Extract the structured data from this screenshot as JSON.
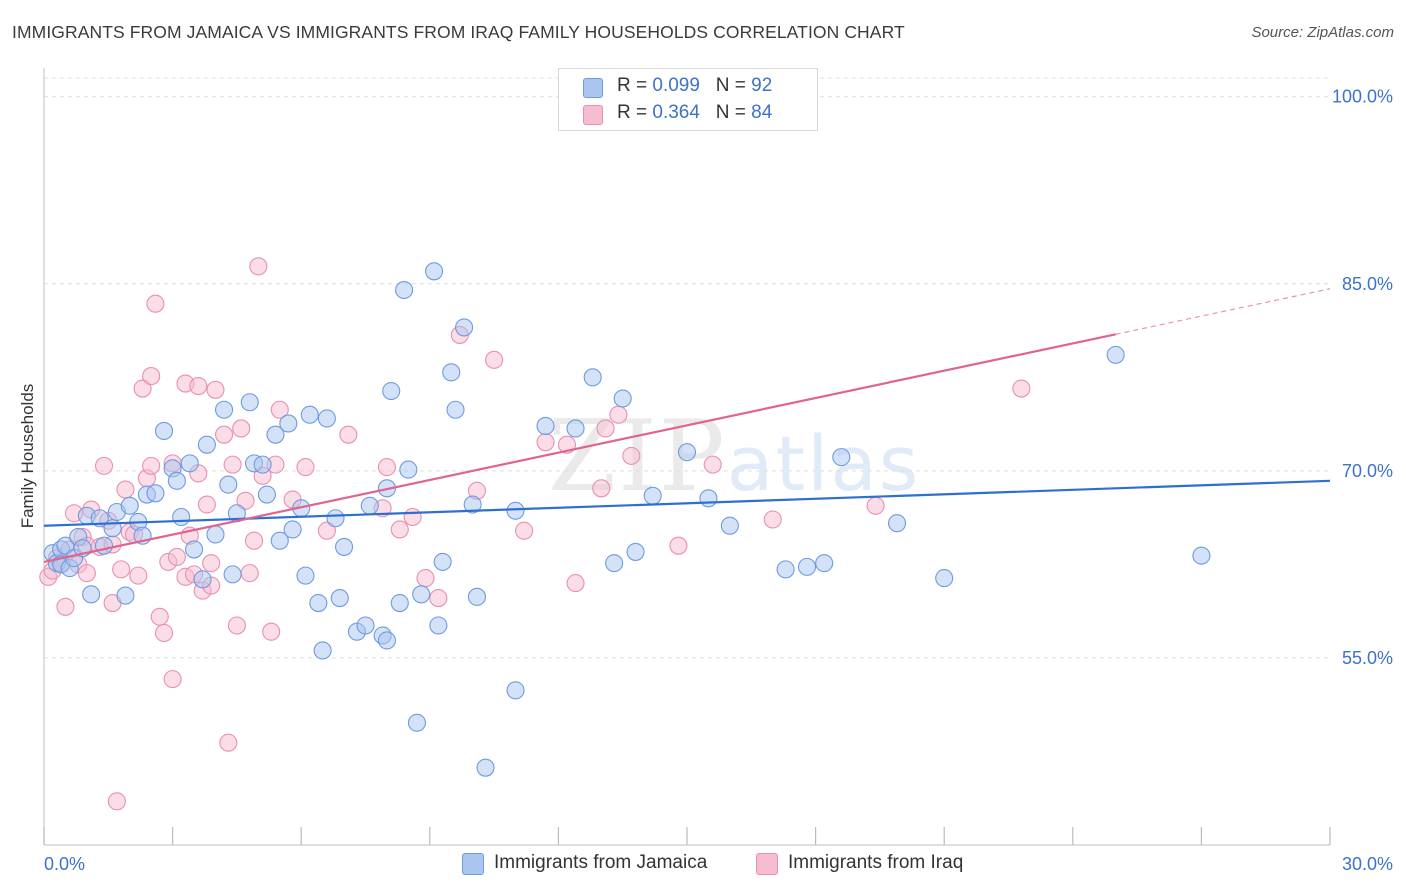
{
  "title": "IMMIGRANTS FROM JAMAICA VS IMMIGRANTS FROM IRAQ FAMILY HOUSEHOLDS CORRELATION CHART",
  "source": "Source: ZipAtlas.com",
  "watermark": {
    "zip": "ZIP",
    "atlas": "atlas"
  },
  "legend": {
    "rows": [
      {
        "r_label": "R = ",
        "r_value": "0.099",
        "n_label": "N = ",
        "n_value": "92"
      },
      {
        "r_label": "R = ",
        "r_value": "0.364",
        "n_label": "N = ",
        "n_value": "84"
      }
    ]
  },
  "colors": {
    "jamaica_fill": "#aac6ef",
    "jamaica_stroke": "#6e9be0",
    "jamaica_line": "#2f6fd0",
    "iraq_fill": "#f6bcd0",
    "iraq_stroke": "#ea8fb0",
    "iraq_line": "#e0648f",
    "tick": "#3d72c9",
    "grid": "#dddddd"
  },
  "chart_data": {
    "type": "scatter",
    "xlabel": "",
    "ylabel": "Family Households",
    "xlim": [
      0,
      30
    ],
    "ylim": [
      40,
      101.5
    ],
    "x_tick_labels": [
      "0.0%",
      "30.0%"
    ],
    "y_ticks": [
      100,
      85,
      70,
      55
    ],
    "y_tick_labels": [
      "100.0%",
      "85.0%",
      "70.0%",
      "55.0%"
    ],
    "grid": true,
    "series": [
      {
        "name": "Immigrants from Jamaica",
        "r": 0.099,
        "n": 92,
        "trend": {
          "x": [
            0,
            30
          ],
          "y": [
            65.6,
            69.2
          ],
          "dashed_after": null
        },
        "points": [
          [
            0.2,
            63.4
          ],
          [
            0.3,
            62.6
          ],
          [
            0.4,
            63.7
          ],
          [
            0.4,
            62.5
          ],
          [
            0.5,
            64.0
          ],
          [
            0.6,
            62.2
          ],
          [
            0.7,
            63.0
          ],
          [
            0.8,
            64.7
          ],
          [
            0.9,
            63.8
          ],
          [
            1.0,
            66.4
          ],
          [
            1.1,
            60.1
          ],
          [
            1.3,
            66.2
          ],
          [
            1.4,
            64.0
          ],
          [
            1.6,
            65.4
          ],
          [
            1.7,
            66.7
          ],
          [
            1.9,
            60.0
          ],
          [
            2.0,
            67.2
          ],
          [
            2.2,
            65.9
          ],
          [
            2.3,
            64.8
          ],
          [
            2.4,
            68.1
          ],
          [
            2.6,
            68.2
          ],
          [
            2.8,
            73.2
          ],
          [
            3.0,
            70.2
          ],
          [
            3.1,
            69.2
          ],
          [
            3.2,
            66.3
          ],
          [
            3.4,
            70.6
          ],
          [
            3.5,
            63.7
          ],
          [
            3.7,
            61.3
          ],
          [
            3.8,
            72.1
          ],
          [
            4.0,
            64.9
          ],
          [
            4.2,
            74.9
          ],
          [
            4.3,
            68.9
          ],
          [
            4.4,
            61.7
          ],
          [
            4.5,
            66.6
          ],
          [
            4.8,
            75.5
          ],
          [
            4.9,
            70.6
          ],
          [
            5.1,
            70.5
          ],
          [
            5.2,
            68.1
          ],
          [
            5.4,
            72.9
          ],
          [
            5.5,
            64.4
          ],
          [
            5.7,
            73.8
          ],
          [
            5.8,
            65.3
          ],
          [
            6.0,
            67.0
          ],
          [
            6.1,
            61.6
          ],
          [
            6.2,
            74.5
          ],
          [
            6.4,
            59.4
          ],
          [
            6.5,
            55.6
          ],
          [
            6.6,
            74.2
          ],
          [
            6.8,
            66.2
          ],
          [
            6.9,
            59.8
          ],
          [
            7.0,
            63.9
          ],
          [
            7.3,
            57.1
          ],
          [
            7.5,
            57.6
          ],
          [
            7.6,
            67.2
          ],
          [
            7.9,
            56.8
          ],
          [
            8.0,
            56.4
          ],
          [
            8.0,
            68.6
          ],
          [
            8.1,
            76.4
          ],
          [
            8.3,
            59.4
          ],
          [
            8.4,
            84.5
          ],
          [
            8.5,
            70.1
          ],
          [
            8.7,
            49.8
          ],
          [
            8.8,
            60.1
          ],
          [
            9.1,
            86.0
          ],
          [
            9.2,
            57.6
          ],
          [
            9.3,
            62.7
          ],
          [
            9.5,
            77.9
          ],
          [
            9.6,
            74.9
          ],
          [
            9.8,
            81.5
          ],
          [
            10.0,
            67.3
          ],
          [
            10.1,
            59.9
          ],
          [
            10.3,
            46.2
          ],
          [
            11.0,
            52.4
          ],
          [
            11.0,
            66.8
          ],
          [
            11.7,
            73.6
          ],
          [
            12.4,
            73.4
          ],
          [
            12.8,
            77.5
          ],
          [
            13.3,
            62.6
          ],
          [
            13.5,
            75.8
          ],
          [
            13.8,
            63.5
          ],
          [
            14.2,
            68.0
          ],
          [
            15.0,
            71.5
          ],
          [
            15.5,
            67.8
          ],
          [
            16.0,
            65.6
          ],
          [
            17.3,
            62.1
          ],
          [
            17.8,
            62.3
          ],
          [
            18.2,
            62.6
          ],
          [
            18.6,
            71.1
          ],
          [
            19.9,
            65.8
          ],
          [
            21.0,
            61.4
          ],
          [
            25.0,
            79.3
          ],
          [
            27.0,
            63.2
          ]
        ]
      },
      {
        "name": "Immigrants from Iraq",
        "r": 0.364,
        "n": 84,
        "trend": {
          "x": [
            0,
            30
          ],
          "y": [
            62.7,
            84.6
          ],
          "dashed_after": 25.0
        },
        "points": [
          [
            0.1,
            61.5
          ],
          [
            0.2,
            62.0
          ],
          [
            0.3,
            63.0
          ],
          [
            0.4,
            62.6
          ],
          [
            0.5,
            59.1
          ],
          [
            0.6,
            63.7
          ],
          [
            0.7,
            66.6
          ],
          [
            0.8,
            62.5
          ],
          [
            0.9,
            64.7
          ],
          [
            1.0,
            64.0
          ],
          [
            1.0,
            61.8
          ],
          [
            1.1,
            66.9
          ],
          [
            1.3,
            63.9
          ],
          [
            1.4,
            70.4
          ],
          [
            1.5,
            66.0
          ],
          [
            1.6,
            59.4
          ],
          [
            1.6,
            64.1
          ],
          [
            1.7,
            43.5
          ],
          [
            1.8,
            62.1
          ],
          [
            1.9,
            68.5
          ],
          [
            2.0,
            65.1
          ],
          [
            2.1,
            64.9
          ],
          [
            2.2,
            61.6
          ],
          [
            2.3,
            76.6
          ],
          [
            2.4,
            69.4
          ],
          [
            2.5,
            70.4
          ],
          [
            2.5,
            77.6
          ],
          [
            2.6,
            83.4
          ],
          [
            2.7,
            58.3
          ],
          [
            2.8,
            57.0
          ],
          [
            2.9,
            62.7
          ],
          [
            3.0,
            70.6
          ],
          [
            3.0,
            53.3
          ],
          [
            3.1,
            63.1
          ],
          [
            3.3,
            77.0
          ],
          [
            3.3,
            61.5
          ],
          [
            3.4,
            64.8
          ],
          [
            3.5,
            61.7
          ],
          [
            3.6,
            69.8
          ],
          [
            3.6,
            76.8
          ],
          [
            3.7,
            60.4
          ],
          [
            3.8,
            67.3
          ],
          [
            3.9,
            60.8
          ],
          [
            3.9,
            62.6
          ],
          [
            4.0,
            76.5
          ],
          [
            4.2,
            72.9
          ],
          [
            4.3,
            48.2
          ],
          [
            4.4,
            70.5
          ],
          [
            4.5,
            57.6
          ],
          [
            4.6,
            73.4
          ],
          [
            4.7,
            67.6
          ],
          [
            4.8,
            61.8
          ],
          [
            4.9,
            64.4
          ],
          [
            5.0,
            86.4
          ],
          [
            5.1,
            69.6
          ],
          [
            5.3,
            57.1
          ],
          [
            5.4,
            70.5
          ],
          [
            5.5,
            74.9
          ],
          [
            5.8,
            67.7
          ],
          [
            6.1,
            70.3
          ],
          [
            6.6,
            65.2
          ],
          [
            7.1,
            72.9
          ],
          [
            7.9,
            67.0
          ],
          [
            8.0,
            70.3
          ],
          [
            8.3,
            65.3
          ],
          [
            8.6,
            66.3
          ],
          [
            8.9,
            61.4
          ],
          [
            9.2,
            59.8
          ],
          [
            9.7,
            80.9
          ],
          [
            10.1,
            68.4
          ],
          [
            10.5,
            78.9
          ],
          [
            11.2,
            65.2
          ],
          [
            11.7,
            72.3
          ],
          [
            12.2,
            72.1
          ],
          [
            12.4,
            61.0
          ],
          [
            13.0,
            68.6
          ],
          [
            13.1,
            73.4
          ],
          [
            13.4,
            74.5
          ],
          [
            13.7,
            71.2
          ],
          [
            14.8,
            64.0
          ],
          [
            15.6,
            70.5
          ],
          [
            17.0,
            66.1
          ],
          [
            19.4,
            67.2
          ],
          [
            22.8,
            76.6
          ]
        ]
      }
    ]
  }
}
